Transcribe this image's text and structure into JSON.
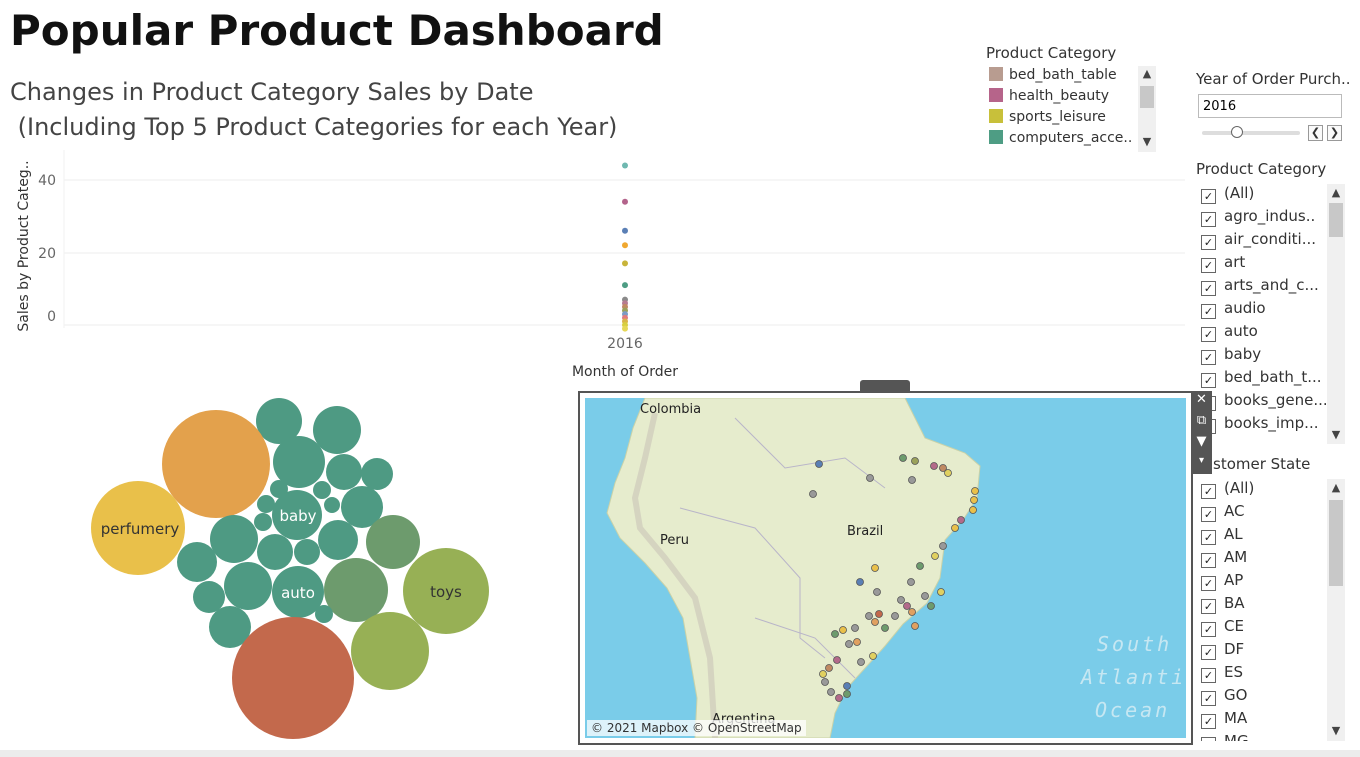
{
  "dashboard": {
    "title": "Popular Product Dashboard"
  },
  "scatter": {
    "title_line1": "Changes in Product Category Sales by Date",
    "title_line2": " (Including Top 5 Product Categories for each Year)",
    "ylabel": "Sales by Product Categ..",
    "xlabel": "Month of Order",
    "yticks": [
      "40",
      "20",
      "0"
    ],
    "xtick": "2016"
  },
  "chart_data": {
    "type": "scatter",
    "x_category": "2016",
    "ylim": [
      -3,
      47
    ],
    "points": [
      {
        "y": 44,
        "color": "#6fb8b0"
      },
      {
        "y": 34,
        "color": "#b3638b"
      },
      {
        "y": 26,
        "color": "#5a7fb5"
      },
      {
        "y": 22,
        "color": "#f0a830"
      },
      {
        "y": 17,
        "color": "#c8b43a"
      },
      {
        "y": 11,
        "color": "#4e9d84"
      },
      {
        "y": 7,
        "color": "#8a8a8a"
      },
      {
        "y": 6,
        "color": "#b67c90"
      },
      {
        "y": 5,
        "color": "#c08a63"
      },
      {
        "y": 4,
        "color": "#9aa15a"
      },
      {
        "y": 3,
        "color": "#7a9cc5"
      },
      {
        "y": 2,
        "color": "#e07c7c"
      },
      {
        "y": 1,
        "color": "#d9b44a"
      },
      {
        "y": 0,
        "color": "#d8cf40"
      },
      {
        "y": -1,
        "color": "#e6d858"
      }
    ]
  },
  "legend": {
    "title": "Product Category",
    "items": [
      {
        "label": "bed_bath_table",
        "color": "#b89c90"
      },
      {
        "label": "health_beauty",
        "color": "#b6648a"
      },
      {
        "label": "sports_leisure",
        "color": "#c8c03a"
      },
      {
        "label": "computers_acce..",
        "color": "#4e9d84"
      }
    ]
  },
  "year_filter": {
    "title": "Year of Order Purch..",
    "value": "2016",
    "prev": "❮",
    "next": "❯"
  },
  "category_filter": {
    "title": "Product Category",
    "items": [
      "(All)",
      "agro_indus..",
      "air_conditi...",
      "art",
      "arts_and_c...",
      "audio",
      "auto",
      "baby",
      "bed_bath_t...",
      "books_gene...",
      "books_imp..."
    ]
  },
  "state_filter": {
    "title": "stomer State",
    "items": [
      "(All)",
      "AC",
      "AL",
      "AM",
      "AP",
      "BA",
      "CE",
      "DF",
      "ES",
      "GO",
      "MA",
      "MG"
    ]
  },
  "bubbles": {
    "labels": {
      "perfumery": "perfumery",
      "baby": "baby",
      "auto": "auto",
      "toys": "toys"
    }
  },
  "map": {
    "labels": {
      "colombia": "Colombia",
      "peru": "Peru",
      "brazil": "Brazil",
      "argentina": "Argentina"
    },
    "ocean": [
      "South",
      "Atlantic",
      "Ocean"
    ],
    "attribution": "© 2021 Mapbox © OpenStreetMap"
  },
  "colors": {
    "teal": "#4e9a83",
    "olive": "#97b055",
    "orange": "#e3a14c",
    "yellow": "#e9c04a",
    "rust": "#c3694c",
    "ocean": "#7acce9",
    "land": "#e6eccd"
  }
}
